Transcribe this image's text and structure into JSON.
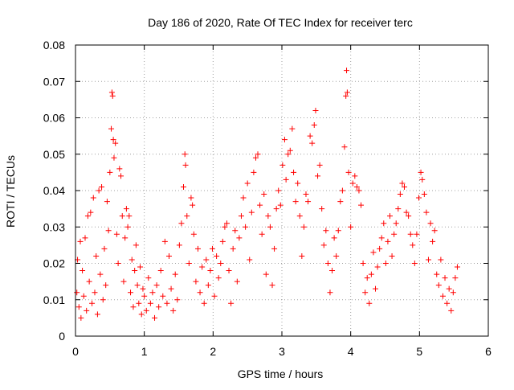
{
  "chart_data": {
    "type": "scatter",
    "title": "Day 186 of 2020, Rate Of TEC Index for receiver terc",
    "xlabel": "GPS time / hours",
    "ylabel": "ROTI / TECUs",
    "xlim": [
      0,
      6
    ],
    "ylim": [
      0,
      0.08
    ],
    "x_ticks": [
      0,
      1,
      2,
      3,
      4,
      5,
      6
    ],
    "y_ticks": [
      0,
      0.01,
      0.02,
      0.03,
      0.04,
      0.05,
      0.06,
      0.07,
      0.08
    ],
    "x_tick_labels": [
      "0",
      "1",
      "2",
      "3",
      "4",
      "5",
      "6"
    ],
    "y_tick_labels": [
      "0",
      "0.01",
      "0.02",
      "0.03",
      "0.04",
      "0.05",
      "0.06",
      "0.07",
      "0.08"
    ],
    "grid": true,
    "marker": "+",
    "marker_color": "#ff0000",
    "series": [
      {
        "name": "ROTI",
        "points": [
          [
            0.02,
            0.012
          ],
          [
            0.03,
            0.021
          ],
          [
            0.05,
            0.008
          ],
          [
            0.07,
            0.026
          ],
          [
            0.08,
            0.005
          ],
          [
            0.1,
            0.018
          ],
          [
            0.12,
            0.011
          ],
          [
            0.14,
            0.027
          ],
          [
            0.16,
            0.007
          ],
          [
            0.18,
            0.033
          ],
          [
            0.2,
            0.015
          ],
          [
            0.22,
            0.034
          ],
          [
            0.24,
            0.009
          ],
          [
            0.26,
            0.038
          ],
          [
            0.28,
            0.012
          ],
          [
            0.3,
            0.022
          ],
          [
            0.32,
            0.006
          ],
          [
            0.34,
            0.04
          ],
          [
            0.36,
            0.017
          ],
          [
            0.38,
            0.041
          ],
          [
            0.4,
            0.01
          ],
          [
            0.42,
            0.024
          ],
          [
            0.44,
            0.014
          ],
          [
            0.46,
            0.037
          ],
          [
            0.48,
            0.029
          ],
          [
            0.5,
            0.045
          ],
          [
            0.52,
            0.057
          ],
          [
            0.53,
            0.067
          ],
          [
            0.54,
            0.066
          ],
          [
            0.55,
            0.054
          ],
          [
            0.56,
            0.049
          ],
          [
            0.58,
            0.053
          ],
          [
            0.6,
            0.028
          ],
          [
            0.62,
            0.02
          ],
          [
            0.64,
            0.046
          ],
          [
            0.66,
            0.044
          ],
          [
            0.68,
            0.033
          ],
          [
            0.7,
            0.015
          ],
          [
            0.72,
            0.027
          ],
          [
            0.74,
            0.035
          ],
          [
            0.76,
            0.03
          ],
          [
            0.78,
            0.033
          ],
          [
            0.8,
            0.012
          ],
          [
            0.82,
            0.021
          ],
          [
            0.84,
            0.008
          ],
          [
            0.86,
            0.018
          ],
          [
            0.88,
            0.025
          ],
          [
            0.9,
            0.014
          ],
          [
            0.92,
            0.009
          ],
          [
            0.94,
            0.019
          ],
          [
            0.96,
            0.006
          ],
          [
            0.98,
            0.013
          ],
          [
            1.0,
            0.011
          ],
          [
            1.03,
            0.007
          ],
          [
            1.06,
            0.016
          ],
          [
            1.09,
            0.009
          ],
          [
            1.12,
            0.012
          ],
          [
            1.15,
            0.005
          ],
          [
            1.18,
            0.014
          ],
          [
            1.21,
            0.008
          ],
          [
            1.24,
            0.018
          ],
          [
            1.27,
            0.011
          ],
          [
            1.3,
            0.026
          ],
          [
            1.33,
            0.009
          ],
          [
            1.36,
            0.022
          ],
          [
            1.39,
            0.013
          ],
          [
            1.42,
            0.007
          ],
          [
            1.45,
            0.017
          ],
          [
            1.48,
            0.01
          ],
          [
            1.51,
            0.025
          ],
          [
            1.54,
            0.031
          ],
          [
            1.57,
            0.041
          ],
          [
            1.59,
            0.05
          ],
          [
            1.6,
            0.047
          ],
          [
            1.62,
            0.033
          ],
          [
            1.65,
            0.02
          ],
          [
            1.68,
            0.038
          ],
          [
            1.7,
            0.036
          ],
          [
            1.72,
            0.028
          ],
          [
            1.75,
            0.015
          ],
          [
            1.78,
            0.024
          ],
          [
            1.81,
            0.012
          ],
          [
            1.84,
            0.019
          ],
          [
            1.87,
            0.009
          ],
          [
            1.9,
            0.021
          ],
          [
            1.93,
            0.014
          ],
          [
            1.96,
            0.018
          ],
          [
            1.99,
            0.024
          ],
          [
            2.02,
            0.011
          ],
          [
            2.05,
            0.022
          ],
          [
            2.08,
            0.016
          ],
          [
            2.11,
            0.02
          ],
          [
            2.14,
            0.026
          ],
          [
            2.17,
            0.03
          ],
          [
            2.2,
            0.031
          ],
          [
            2.23,
            0.018
          ],
          [
            2.26,
            0.009
          ],
          [
            2.29,
            0.024
          ],
          [
            2.32,
            0.029
          ],
          [
            2.35,
            0.015
          ],
          [
            2.38,
            0.027
          ],
          [
            2.41,
            0.033
          ],
          [
            2.44,
            0.038
          ],
          [
            2.47,
            0.03
          ],
          [
            2.5,
            0.042
          ],
          [
            2.53,
            0.021
          ],
          [
            2.56,
            0.034
          ],
          [
            2.59,
            0.045
          ],
          [
            2.62,
            0.049
          ],
          [
            2.65,
            0.05
          ],
          [
            2.68,
            0.036
          ],
          [
            2.71,
            0.028
          ],
          [
            2.74,
            0.039
          ],
          [
            2.77,
            0.017
          ],
          [
            2.8,
            0.033
          ],
          [
            2.83,
            0.03
          ],
          [
            2.86,
            0.014
          ],
          [
            2.89,
            0.024
          ],
          [
            2.92,
            0.035
          ],
          [
            2.95,
            0.04
          ],
          [
            2.98,
            0.036
          ],
          [
            3.01,
            0.047
          ],
          [
            3.04,
            0.054
          ],
          [
            3.06,
            0.043
          ],
          [
            3.09,
            0.05
          ],
          [
            3.12,
            0.051
          ],
          [
            3.15,
            0.057
          ],
          [
            3.17,
            0.045
          ],
          [
            3.2,
            0.037
          ],
          [
            3.23,
            0.042
          ],
          [
            3.26,
            0.033
          ],
          [
            3.29,
            0.022
          ],
          [
            3.32,
            0.03
          ],
          [
            3.35,
            0.039
          ],
          [
            3.38,
            0.037
          ],
          [
            3.41,
            0.055
          ],
          [
            3.44,
            0.053
          ],
          [
            3.47,
            0.058
          ],
          [
            3.49,
            0.062
          ],
          [
            3.52,
            0.044
          ],
          [
            3.55,
            0.047
          ],
          [
            3.58,
            0.035
          ],
          [
            3.61,
            0.025
          ],
          [
            3.64,
            0.029
          ],
          [
            3.67,
            0.02
          ],
          [
            3.7,
            0.012
          ],
          [
            3.73,
            0.018
          ],
          [
            3.76,
            0.027
          ],
          [
            3.79,
            0.022
          ],
          [
            3.82,
            0.029
          ],
          [
            3.85,
            0.037
          ],
          [
            3.88,
            0.04
          ],
          [
            3.91,
            0.052
          ],
          [
            3.93,
            0.066
          ],
          [
            3.94,
            0.073
          ],
          [
            3.95,
            0.067
          ],
          [
            3.97,
            0.045
          ],
          [
            4.0,
            0.03
          ],
          [
            4.03,
            0.042
          ],
          [
            4.06,
            0.044
          ],
          [
            4.09,
            0.041
          ],
          [
            4.12,
            0.04
          ],
          [
            4.15,
            0.036
          ],
          [
            4.18,
            0.02
          ],
          [
            4.21,
            0.012
          ],
          [
            4.24,
            0.016
          ],
          [
            4.27,
            0.009
          ],
          [
            4.3,
            0.017
          ],
          [
            4.33,
            0.023
          ],
          [
            4.36,
            0.013
          ],
          [
            4.39,
            0.019
          ],
          [
            4.42,
            0.024
          ],
          [
            4.45,
            0.027
          ],
          [
            4.48,
            0.031
          ],
          [
            4.51,
            0.02
          ],
          [
            4.54,
            0.026
          ],
          [
            4.57,
            0.033
          ],
          [
            4.6,
            0.022
          ],
          [
            4.63,
            0.028
          ],
          [
            4.66,
            0.031
          ],
          [
            4.69,
            0.035
          ],
          [
            4.72,
            0.039
          ],
          [
            4.75,
            0.042
          ],
          [
            4.78,
            0.041
          ],
          [
            4.81,
            0.034
          ],
          [
            4.84,
            0.033
          ],
          [
            4.87,
            0.028
          ],
          [
            4.9,
            0.025
          ],
          [
            4.93,
            0.02
          ],
          [
            4.96,
            0.028
          ],
          [
            4.99,
            0.038
          ],
          [
            5.02,
            0.045
          ],
          [
            5.04,
            0.043
          ],
          [
            5.07,
            0.039
          ],
          [
            5.1,
            0.034
          ],
          [
            5.13,
            0.021
          ],
          [
            5.16,
            0.031
          ],
          [
            5.19,
            0.026
          ],
          [
            5.22,
            0.029
          ],
          [
            5.25,
            0.017
          ],
          [
            5.28,
            0.014
          ],
          [
            5.31,
            0.021
          ],
          [
            5.34,
            0.011
          ],
          [
            5.37,
            0.016
          ],
          [
            5.4,
            0.009
          ],
          [
            5.43,
            0.013
          ],
          [
            5.46,
            0.007
          ],
          [
            5.49,
            0.012
          ],
          [
            5.52,
            0.016
          ],
          [
            5.55,
            0.019
          ]
        ]
      }
    ]
  }
}
